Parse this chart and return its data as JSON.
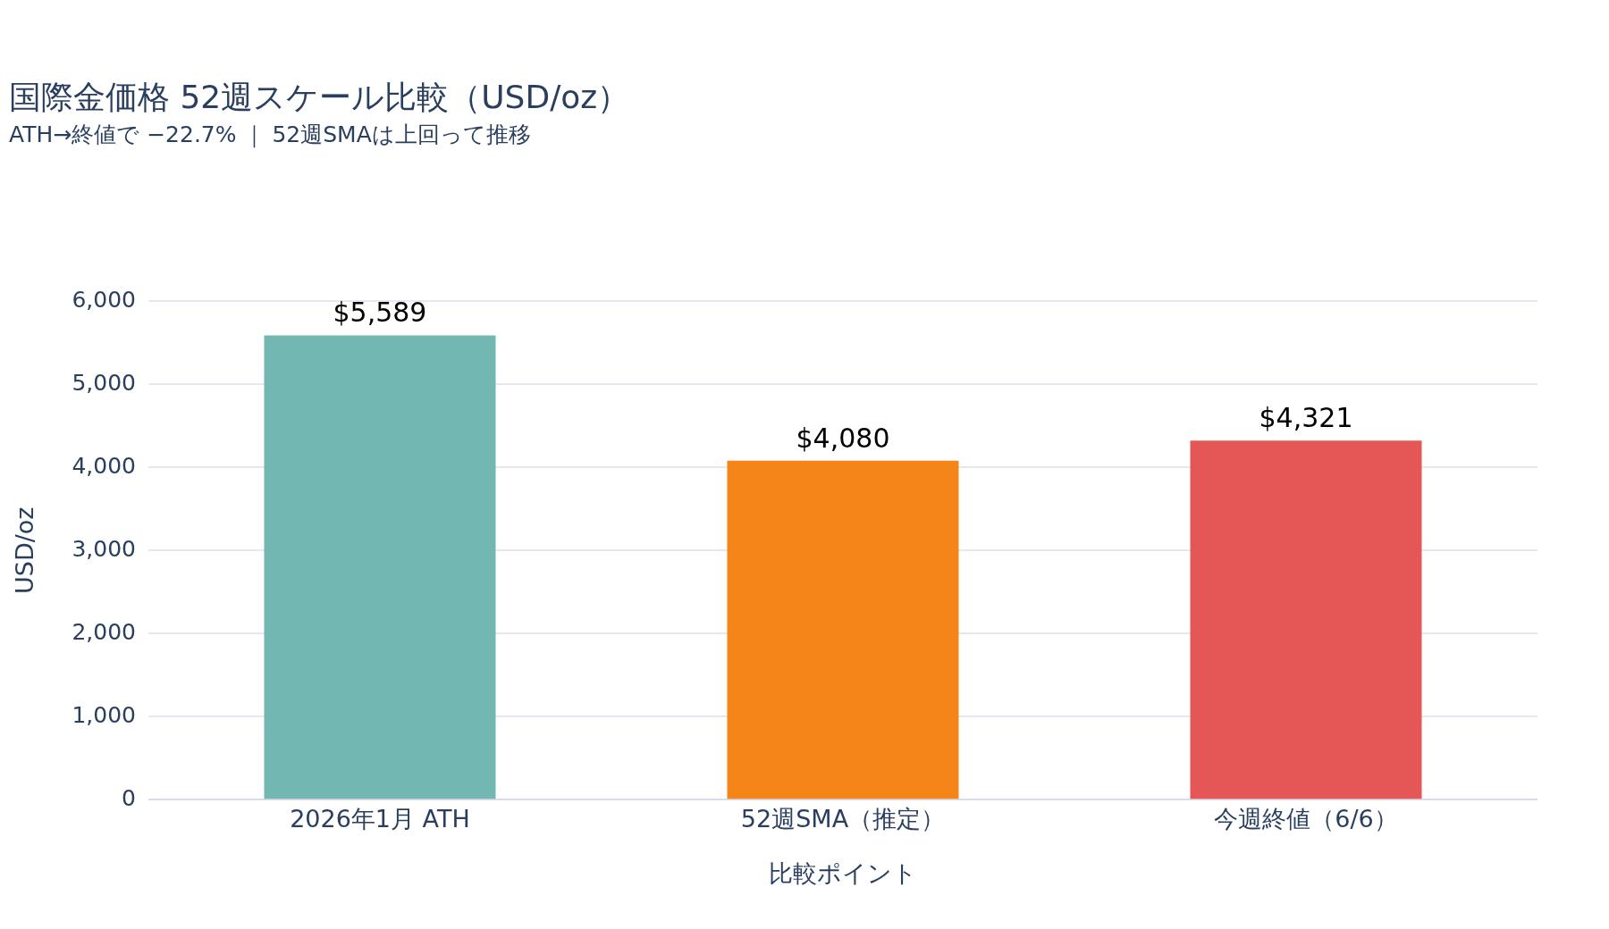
{
  "chart_data": {
    "type": "bar",
    "title": "国際金価格 52週スケール比較（USD/oz）",
    "subtitle": "ATH→終値で −22.7% ｜ 52週SMAは上回って推移",
    "xlabel": "比較ポイント",
    "ylabel": "USD/oz",
    "categories": [
      "2026年1月 ATH",
      "52週SMA（推定）",
      "今週終値（6/6）"
    ],
    "values": [
      5589,
      4080,
      4321
    ],
    "colors": [
      "#72b7b2",
      "#f58518",
      "#e45756"
    ],
    "value_labels": [
      "$5,589",
      "$4,080",
      "$4,321"
    ],
    "ylim": [
      0,
      6000
    ],
    "yticks": [
      {
        "value": 0,
        "label": "0"
      },
      {
        "value": 1000,
        "label": "1,000"
      },
      {
        "value": 2000,
        "label": "2,000"
      },
      {
        "value": 3000,
        "label": "3,000"
      },
      {
        "value": 4000,
        "label": "4,000"
      },
      {
        "value": 5000,
        "label": "5,000"
      },
      {
        "value": 6000,
        "label": "6,000"
      }
    ],
    "grid": "y",
    "legend": false
  }
}
